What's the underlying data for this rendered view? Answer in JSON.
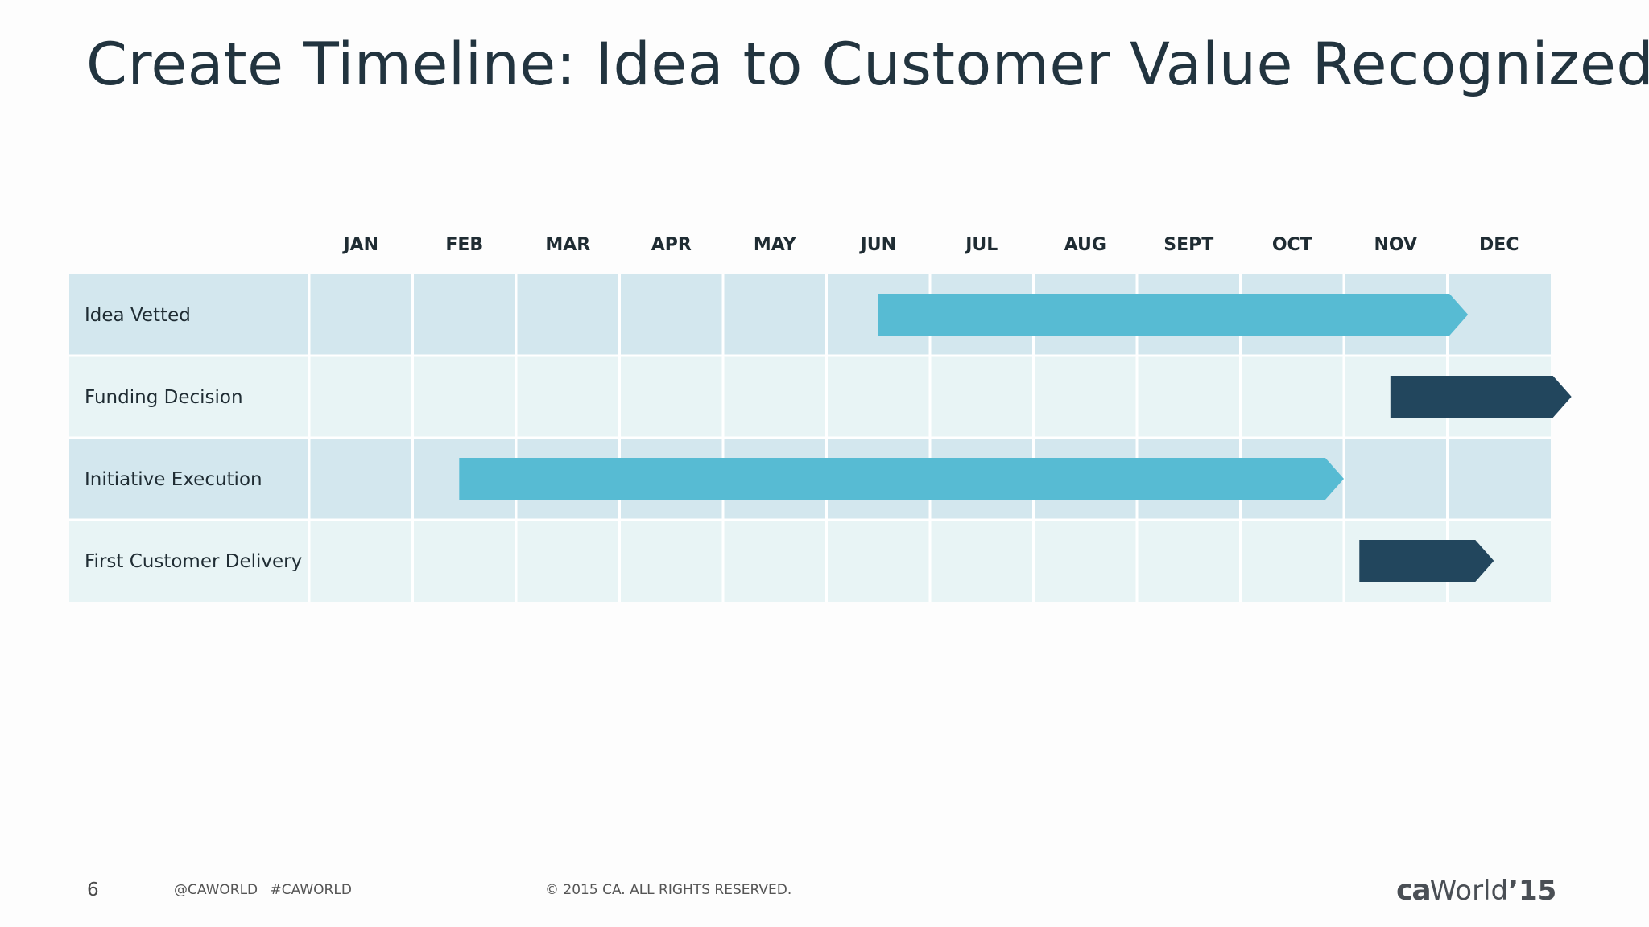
{
  "slide": {
    "title": "Create Timeline: Idea to Customer Value Recognized",
    "page_number": "6",
    "social": "@CAWORLD #CAWORLD",
    "copyright": "© 2015 CA. ALL RIGHTS RESERVED.",
    "logo": {
      "ca": "ca",
      "world": "World",
      "year": "’15"
    }
  },
  "colors": {
    "title": "#22343f",
    "row_dark": "#d3e7ee",
    "row_light": "#e8f4f5",
    "light_bar": "#57bbd3",
    "dark_bar": "#22465d",
    "grid_line": "#ffffff"
  },
  "chart_data": {
    "type": "gantt",
    "title": "Create Timeline: Idea to Customer Value Recognized",
    "categories": [
      "JAN",
      "FEB",
      "MAR",
      "APR",
      "MAY",
      "JUN",
      "JUL",
      "AUG",
      "SEPT",
      "OCT",
      "NOV",
      "DEC"
    ],
    "x_range": [
      0,
      12
    ],
    "rows": [
      {
        "label": "Idea Vetted",
        "start": 5.5,
        "end": 11.2,
        "color": "light"
      },
      {
        "label": "Funding Decision",
        "start": 10.45,
        "end": 12.2,
        "color": "dark"
      },
      {
        "label": "Initiative Execution",
        "start": 1.45,
        "end": 10.0,
        "color": "light"
      },
      {
        "label": "First Customer Delivery",
        "start": 10.15,
        "end": 11.45,
        "color": "dark"
      }
    ],
    "grid": true
  }
}
